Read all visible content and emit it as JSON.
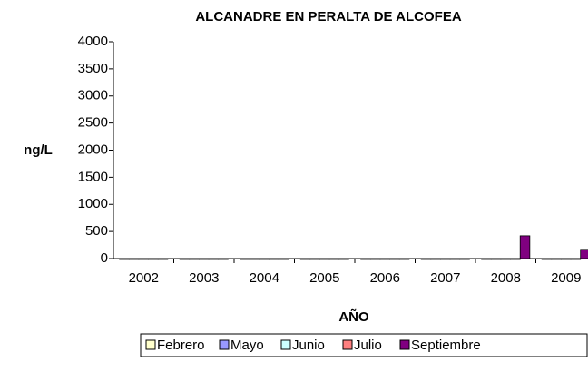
{
  "chart_data": {
    "type": "bar",
    "title": "ALCANADRE EN PERALTA DE ALCOFEA",
    "y_label": "ng/L",
    "x_label": "AÑO",
    "categories": [
      "2002",
      "2003",
      "2004",
      "2005",
      "2006",
      "2007",
      "2008",
      "2009"
    ],
    "series": [
      {
        "name": "Febrero",
        "color": "#ffffcc",
        "values": [
          0,
          0,
          0,
          0,
          0,
          0,
          0,
          0
        ]
      },
      {
        "name": "Mayo",
        "color": "#9999ff",
        "values": [
          0,
          0,
          0,
          0,
          0,
          0,
          0,
          0
        ]
      },
      {
        "name": "Junio",
        "color": "#ccffff",
        "values": [
          0,
          0,
          0,
          0,
          0,
          0,
          0,
          0
        ]
      },
      {
        "name": "Julio",
        "color": "#ff8080",
        "values": [
          0,
          0,
          0,
          0,
          0,
          0,
          0,
          0
        ]
      },
      {
        "name": "Septiembre",
        "color": "#800080",
        "values": [
          0,
          0,
          0,
          0,
          0,
          0,
          420,
          170
        ]
      }
    ],
    "ylim": [
      0,
      4000
    ],
    "yticks": [
      0,
      500,
      1000,
      1500,
      2000,
      2500,
      3000,
      3500,
      4000
    ],
    "grid": false,
    "legend": "bottom"
  }
}
